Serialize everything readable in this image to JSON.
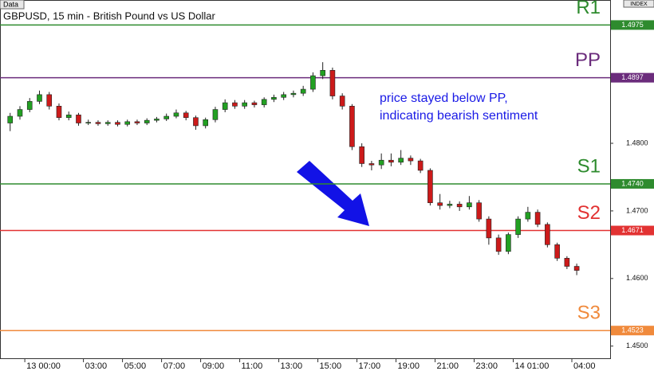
{
  "chart_data": {
    "type": "candlestick",
    "tag": "Data",
    "index_label": "INDEX",
    "title": "GBPUSD, 15 min - British Pound vs US Dollar",
    "annotation": [
      "price stayed below PP,",
      "indicating bearish sentiment"
    ],
    "annotation_color": "#1a1ae6",
    "up_color": "#22a022",
    "down_color": "#cc1a1a",
    "xlim": [
      -1.27,
      29.96
    ],
    "ylim": [
      1.4482,
      1.5012
    ],
    "xticks": [
      {
        "value": 0,
        "label": "13 00:00"
      },
      {
        "value": 3,
        "label": "03:00"
      },
      {
        "value": 5,
        "label": "05:00"
      },
      {
        "value": 7,
        "label": "07:00"
      },
      {
        "value": 9,
        "label": "09:00"
      },
      {
        "value": 11,
        "label": "11:00"
      },
      {
        "value": 13,
        "label": "13:00"
      },
      {
        "value": 15,
        "label": "15:00"
      },
      {
        "value": 17,
        "label": "17:00"
      },
      {
        "value": 19,
        "label": "19:00"
      },
      {
        "value": 21,
        "label": "21:00"
      },
      {
        "value": 23,
        "label": "23:00"
      },
      {
        "value": 25,
        "label": "14 01:00"
      },
      {
        "value": 28,
        "label": "04:00"
      }
    ],
    "yticks": [
      {
        "value": 1.48,
        "label": "1.4800"
      },
      {
        "value": 1.47,
        "label": "1.4700"
      },
      {
        "value": 1.46,
        "label": "1.4600"
      },
      {
        "value": 1.45,
        "label": "1.4500"
      }
    ],
    "levels": [
      {
        "name": "R1",
        "value": 1.4975,
        "color": "#2e8b2e"
      },
      {
        "name": "PP",
        "value": 1.4897,
        "color": "#6b2c7c"
      },
      {
        "name": "S1",
        "value": 1.474,
        "value_label": "1.4740",
        "color": "#2e8b2e"
      },
      {
        "name": "S2",
        "value": 1.4671,
        "color": "#e23232"
      },
      {
        "name": "S3",
        "value": 1.4523,
        "color": "#f08a3c"
      }
    ],
    "x": [
      -0.75,
      -0.25,
      0.25,
      0.75,
      1.25,
      1.75,
      2.25,
      2.75,
      3.25,
      3.75,
      4.25,
      4.75,
      5.25,
      5.75,
      6.25,
      6.75,
      7.25,
      7.75,
      8.25,
      8.75,
      9.25,
      9.75,
      10.25,
      10.75,
      11.25,
      11.75,
      12.25,
      12.75,
      13.25,
      13.75,
      14.25,
      14.75,
      15.25,
      15.75,
      16.25,
      16.75,
      17.25,
      17.75,
      18.25,
      18.75,
      19.25,
      19.75,
      20.25,
      20.75,
      21.25,
      21.75,
      22.25,
      22.75,
      23.25,
      23.75,
      24.25,
      24.75,
      25.25,
      25.75,
      26.25,
      26.75,
      27.25,
      27.75,
      28.25
    ],
    "open": [
      1.483,
      1.484,
      1.485,
      1.4862,
      1.4872,
      1.4855,
      1.4838,
      1.4842,
      1.483,
      1.4831,
      1.4829,
      1.4831,
      1.4828,
      1.4832,
      1.483,
      1.4834,
      1.4836,
      1.484,
      1.4845,
      1.4838,
      1.4826,
      1.4835,
      1.485,
      1.486,
      1.4855,
      1.486,
      1.4857,
      1.4865,
      1.4868,
      1.4872,
      1.4874,
      1.488,
      1.49,
      1.4908,
      1.487,
      1.4855,
      1.4795,
      1.477,
      1.4768,
      1.4775,
      1.4772,
      1.4778,
      1.4774,
      1.476,
      1.4712,
      1.4708,
      1.471,
      1.4706,
      1.4712,
      1.4688,
      1.466,
      1.464,
      1.4665,
      1.4688,
      1.4698,
      1.468,
      1.465,
      1.463,
      1.4618
    ],
    "high": [
      1.4845,
      1.4855,
      1.4867,
      1.4878,
      1.4876,
      1.4859,
      1.4847,
      1.4845,
      1.4835,
      1.4834,
      1.4834,
      1.4834,
      1.4835,
      1.4835,
      1.4837,
      1.4839,
      1.4844,
      1.485,
      1.4848,
      1.4841,
      1.4838,
      1.4854,
      1.4865,
      1.4864,
      1.4864,
      1.4863,
      1.4868,
      1.4872,
      1.4876,
      1.4878,
      1.4885,
      1.4905,
      1.492,
      1.4912,
      1.4874,
      1.4858,
      1.48,
      1.4774,
      1.4785,
      1.4785,
      1.479,
      1.4782,
      1.4777,
      1.4763,
      1.4725,
      1.4715,
      1.4714,
      1.4722,
      1.4716,
      1.4692,
      1.4665,
      1.4668,
      1.4692,
      1.4706,
      1.4702,
      1.4683,
      1.4653,
      1.4633,
      1.4622
    ],
    "low": [
      1.4818,
      1.4835,
      1.4846,
      1.4858,
      1.485,
      1.4834,
      1.4834,
      1.4826,
      1.4827,
      1.4826,
      1.4826,
      1.4825,
      1.4825,
      1.4827,
      1.4827,
      1.4831,
      1.4833,
      1.4837,
      1.4834,
      1.482,
      1.4822,
      1.4831,
      1.4846,
      1.4851,
      1.4851,
      1.4853,
      1.4853,
      1.4861,
      1.4864,
      1.4868,
      1.487,
      1.4876,
      1.4895,
      1.4865,
      1.485,
      1.479,
      1.4765,
      1.476,
      1.4762,
      1.4766,
      1.4768,
      1.4768,
      1.4756,
      1.4708,
      1.4702,
      1.4704,
      1.47,
      1.4702,
      1.4684,
      1.465,
      1.4635,
      1.4636,
      1.466,
      1.4684,
      1.4676,
      1.4646,
      1.4626,
      1.4614,
      1.4605
    ],
    "close": [
      1.484,
      1.485,
      1.4862,
      1.4872,
      1.4855,
      1.4838,
      1.4842,
      1.483,
      1.4831,
      1.4829,
      1.4831,
      1.4828,
      1.4832,
      1.483,
      1.4834,
      1.4836,
      1.484,
      1.4845,
      1.4838,
      1.4826,
      1.4835,
      1.485,
      1.486,
      1.4855,
      1.486,
      1.4857,
      1.4865,
      1.4868,
      1.4872,
      1.4874,
      1.488,
      1.49,
      1.4908,
      1.487,
      1.4855,
      1.4795,
      1.477,
      1.4768,
      1.4775,
      1.4772,
      1.4778,
      1.4774,
      1.476,
      1.4712,
      1.4708,
      1.471,
      1.4706,
      1.4712,
      1.4688,
      1.466,
      1.464,
      1.4665,
      1.4688,
      1.4698,
      1.468,
      1.465,
      1.463,
      1.4618,
      1.4612
    ]
  }
}
